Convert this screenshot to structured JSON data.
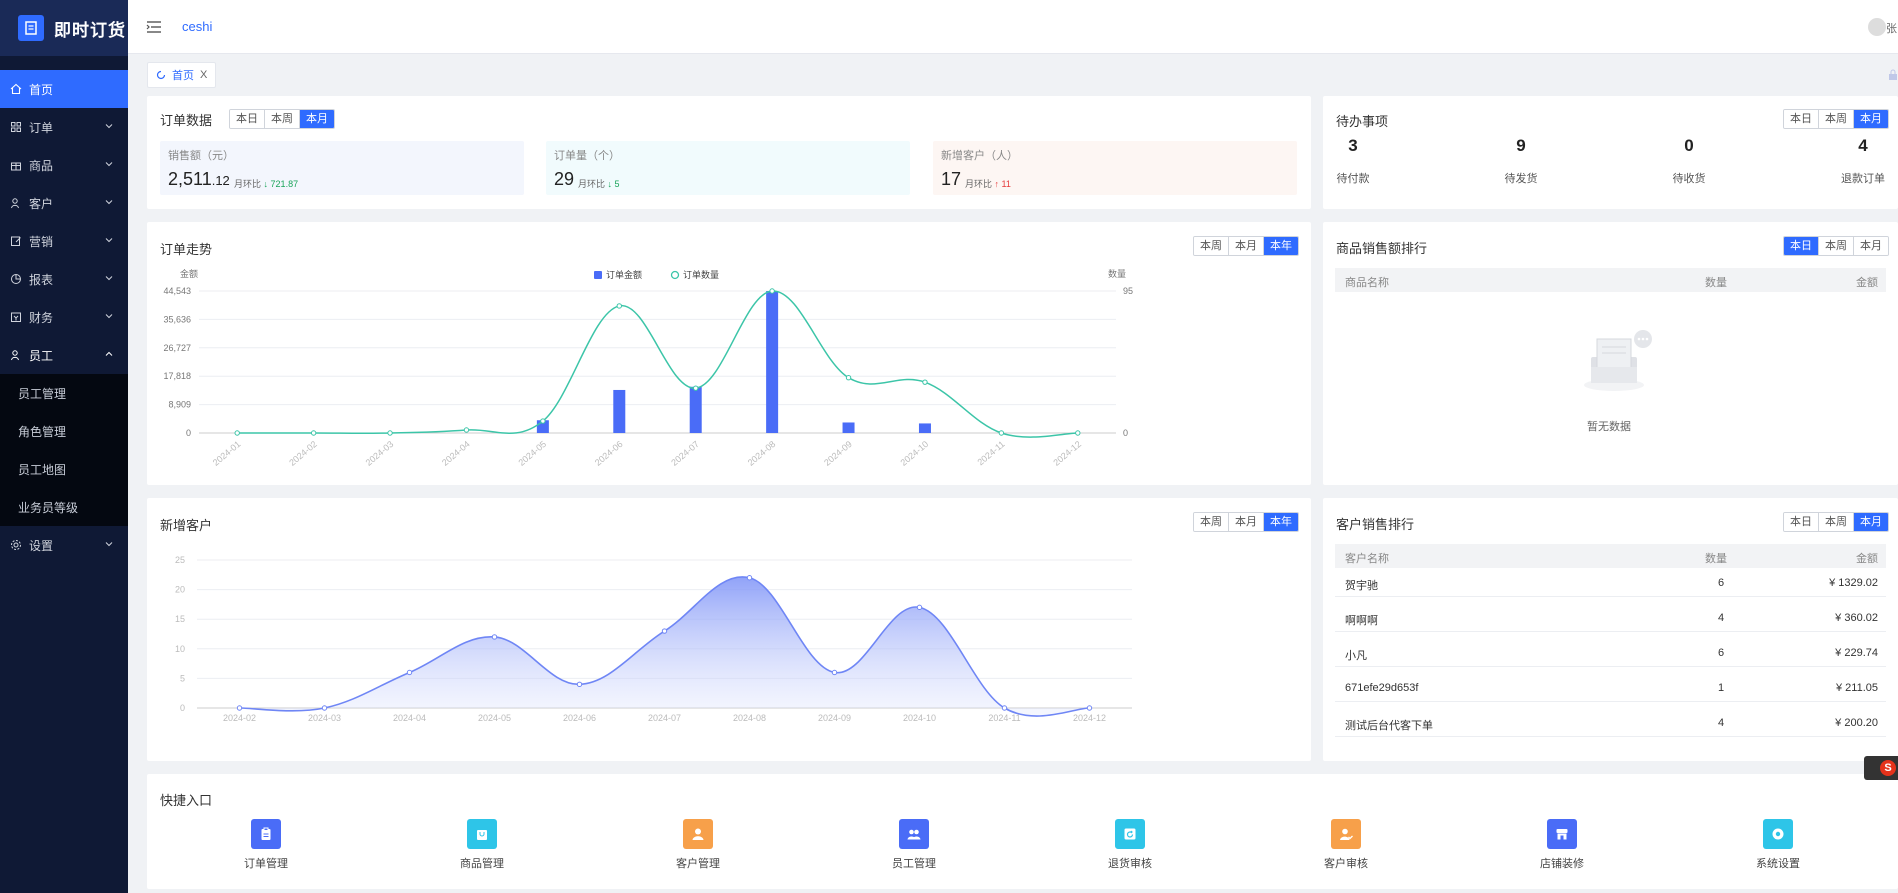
{
  "app": {
    "title": "即时订货"
  },
  "sidebar": {
    "items": [
      {
        "label": "首页",
        "icon": "home-icon",
        "active": true
      },
      {
        "label": "订单",
        "icon": "grid-icon"
      },
      {
        "label": "商品",
        "icon": "gift-icon"
      },
      {
        "label": "客户",
        "icon": "user-icon"
      },
      {
        "label": "营销",
        "icon": "edit-icon"
      },
      {
        "label": "报表",
        "icon": "pie-icon"
      },
      {
        "label": "财务",
        "icon": "wallet-icon"
      },
      {
        "label": "员工",
        "icon": "staff-icon",
        "open": true
      },
      {
        "label": "设置",
        "icon": "gear-icon"
      }
    ],
    "submenu": [
      "员工管理",
      "角色管理",
      "员工地图",
      "业务员等级"
    ]
  },
  "header": {
    "breadcrumb": "ceshi",
    "user": "张"
  },
  "tabs": [
    {
      "label": "首页",
      "close": "X"
    }
  ],
  "order_data": {
    "title": "订单数据",
    "segments": [
      "本日",
      "本周",
      "本月"
    ],
    "active": 2,
    "stats": [
      {
        "label": "销售额（元）",
        "int": "2,511",
        "dec": ".12",
        "cmp_label": "月环比",
        "arrow": "↓",
        "cmp": "721.87"
      },
      {
        "label": "订单量（个）",
        "int": "29",
        "dec": "",
        "cmp_label": "月环比",
        "arrow": "↓",
        "cmp": "5"
      },
      {
        "label": "新增客户（人）",
        "int": "17",
        "dec": "",
        "cmp_label": "月环比",
        "arrow": "↑",
        "cmp": "11"
      }
    ]
  },
  "todo": {
    "title": "待办事项",
    "segments": [
      "本日",
      "本周",
      "本月"
    ],
    "active": 2,
    "items": [
      {
        "n": "3",
        "label": "待付款"
      },
      {
        "n": "9",
        "label": "待发货"
      },
      {
        "n": "0",
        "label": "待收货"
      },
      {
        "n": "4",
        "label": "退款订单"
      }
    ]
  },
  "order_trend": {
    "title": "订单走势",
    "segments": [
      "本周",
      "本月",
      "本年"
    ],
    "active": 2
  },
  "product_rank": {
    "title": "商品销售额排行",
    "segments": [
      "本日",
      "本周",
      "本月"
    ],
    "active": 0,
    "cols": [
      "商品名称",
      "数量",
      "金额"
    ],
    "empty": "暂无数据"
  },
  "new_customers": {
    "title": "新增客户",
    "segments": [
      "本周",
      "本月",
      "本年"
    ],
    "active": 2
  },
  "customer_rank": {
    "title": "客户销售排行",
    "segments": [
      "本日",
      "本周",
      "本月"
    ],
    "active": 2,
    "cols": [
      "客户名称",
      "数量",
      "金额"
    ],
    "rows": [
      {
        "name": "贺宇驰",
        "qty": "6",
        "amt": "¥ 1329.02"
      },
      {
        "name": "啊啊啊",
        "qty": "4",
        "amt": "¥ 360.02"
      },
      {
        "name": "小凡",
        "qty": "6",
        "amt": "¥ 229.74"
      },
      {
        "name": "671efe29d653f",
        "qty": "1",
        "amt": "¥ 211.05"
      },
      {
        "name": "测试后台代客下单",
        "qty": "4",
        "amt": "¥ 200.20"
      }
    ]
  },
  "quick": {
    "title": "快捷入口",
    "items": [
      {
        "label": "订单管理",
        "color": "#4a6cf7",
        "icon": "clipboard-icon"
      },
      {
        "label": "商品管理",
        "color": "#2ec5e8",
        "icon": "bag-icon"
      },
      {
        "label": "客户管理",
        "color": "#f7a04a",
        "icon": "person-icon"
      },
      {
        "label": "员工管理",
        "color": "#4a6cf7",
        "icon": "group-icon"
      },
      {
        "label": "退货审核",
        "color": "#2ec5e8",
        "icon": "return-icon"
      },
      {
        "label": "客户审核",
        "color": "#f7a04a",
        "icon": "person-check-icon"
      },
      {
        "label": "店铺装修",
        "color": "#4a6cf7",
        "icon": "store-icon"
      },
      {
        "label": "系统设置",
        "color": "#2ec5e8",
        "icon": "gear-icon"
      }
    ]
  },
  "chart_data": [
    {
      "type": "bar+line",
      "title": "",
      "ylabel_left": "金额",
      "ylabel_right": "数量",
      "legend": [
        "订单金额",
        "订单数量"
      ],
      "categories": [
        "2024-01",
        "2024-02",
        "2024-03",
        "2024-04",
        "2024-05",
        "2024-06",
        "2024-07",
        "2024-08",
        "2024-09",
        "2024-10",
        "2024-11",
        "2024-12"
      ],
      "y_left_ticks": [
        "0",
        "8,909",
        "17,818",
        "26,727",
        "35,636",
        "44,543"
      ],
      "y_right_ticks": [
        "0",
        "95"
      ],
      "ylim_left": [
        0,
        44543
      ],
      "ylim_right": [
        0,
        95
      ],
      "series": [
        {
          "name": "订单金额",
          "kind": "bar",
          "values": [
            0,
            0,
            0,
            0,
            4000,
            13500,
            14500,
            44543,
            3300,
            3000,
            0,
            0
          ],
          "color": "#4a6cf7"
        },
        {
          "name": "订单数量",
          "kind": "line",
          "values": [
            0,
            0,
            0,
            2,
            8,
            85,
            30,
            95,
            37,
            34,
            0,
            0
          ],
          "color": "#3cc5a8"
        }
      ]
    },
    {
      "type": "area",
      "title": "",
      "categories": [
        "2024-02",
        "2024-03",
        "2024-04",
        "2024-05",
        "2024-06",
        "2024-07",
        "2024-08",
        "2024-09",
        "2024-10",
        "2024-11",
        "2024-12"
      ],
      "y_ticks": [
        "0",
        "5",
        "10",
        "15",
        "20",
        "25"
      ],
      "ylim": [
        0,
        25
      ],
      "series": [
        {
          "name": "",
          "values": [
            0,
            0,
            6,
            12,
            4,
            13,
            22,
            6,
            17,
            0,
            0
          ],
          "color": "#6f86f5"
        }
      ]
    }
  ]
}
